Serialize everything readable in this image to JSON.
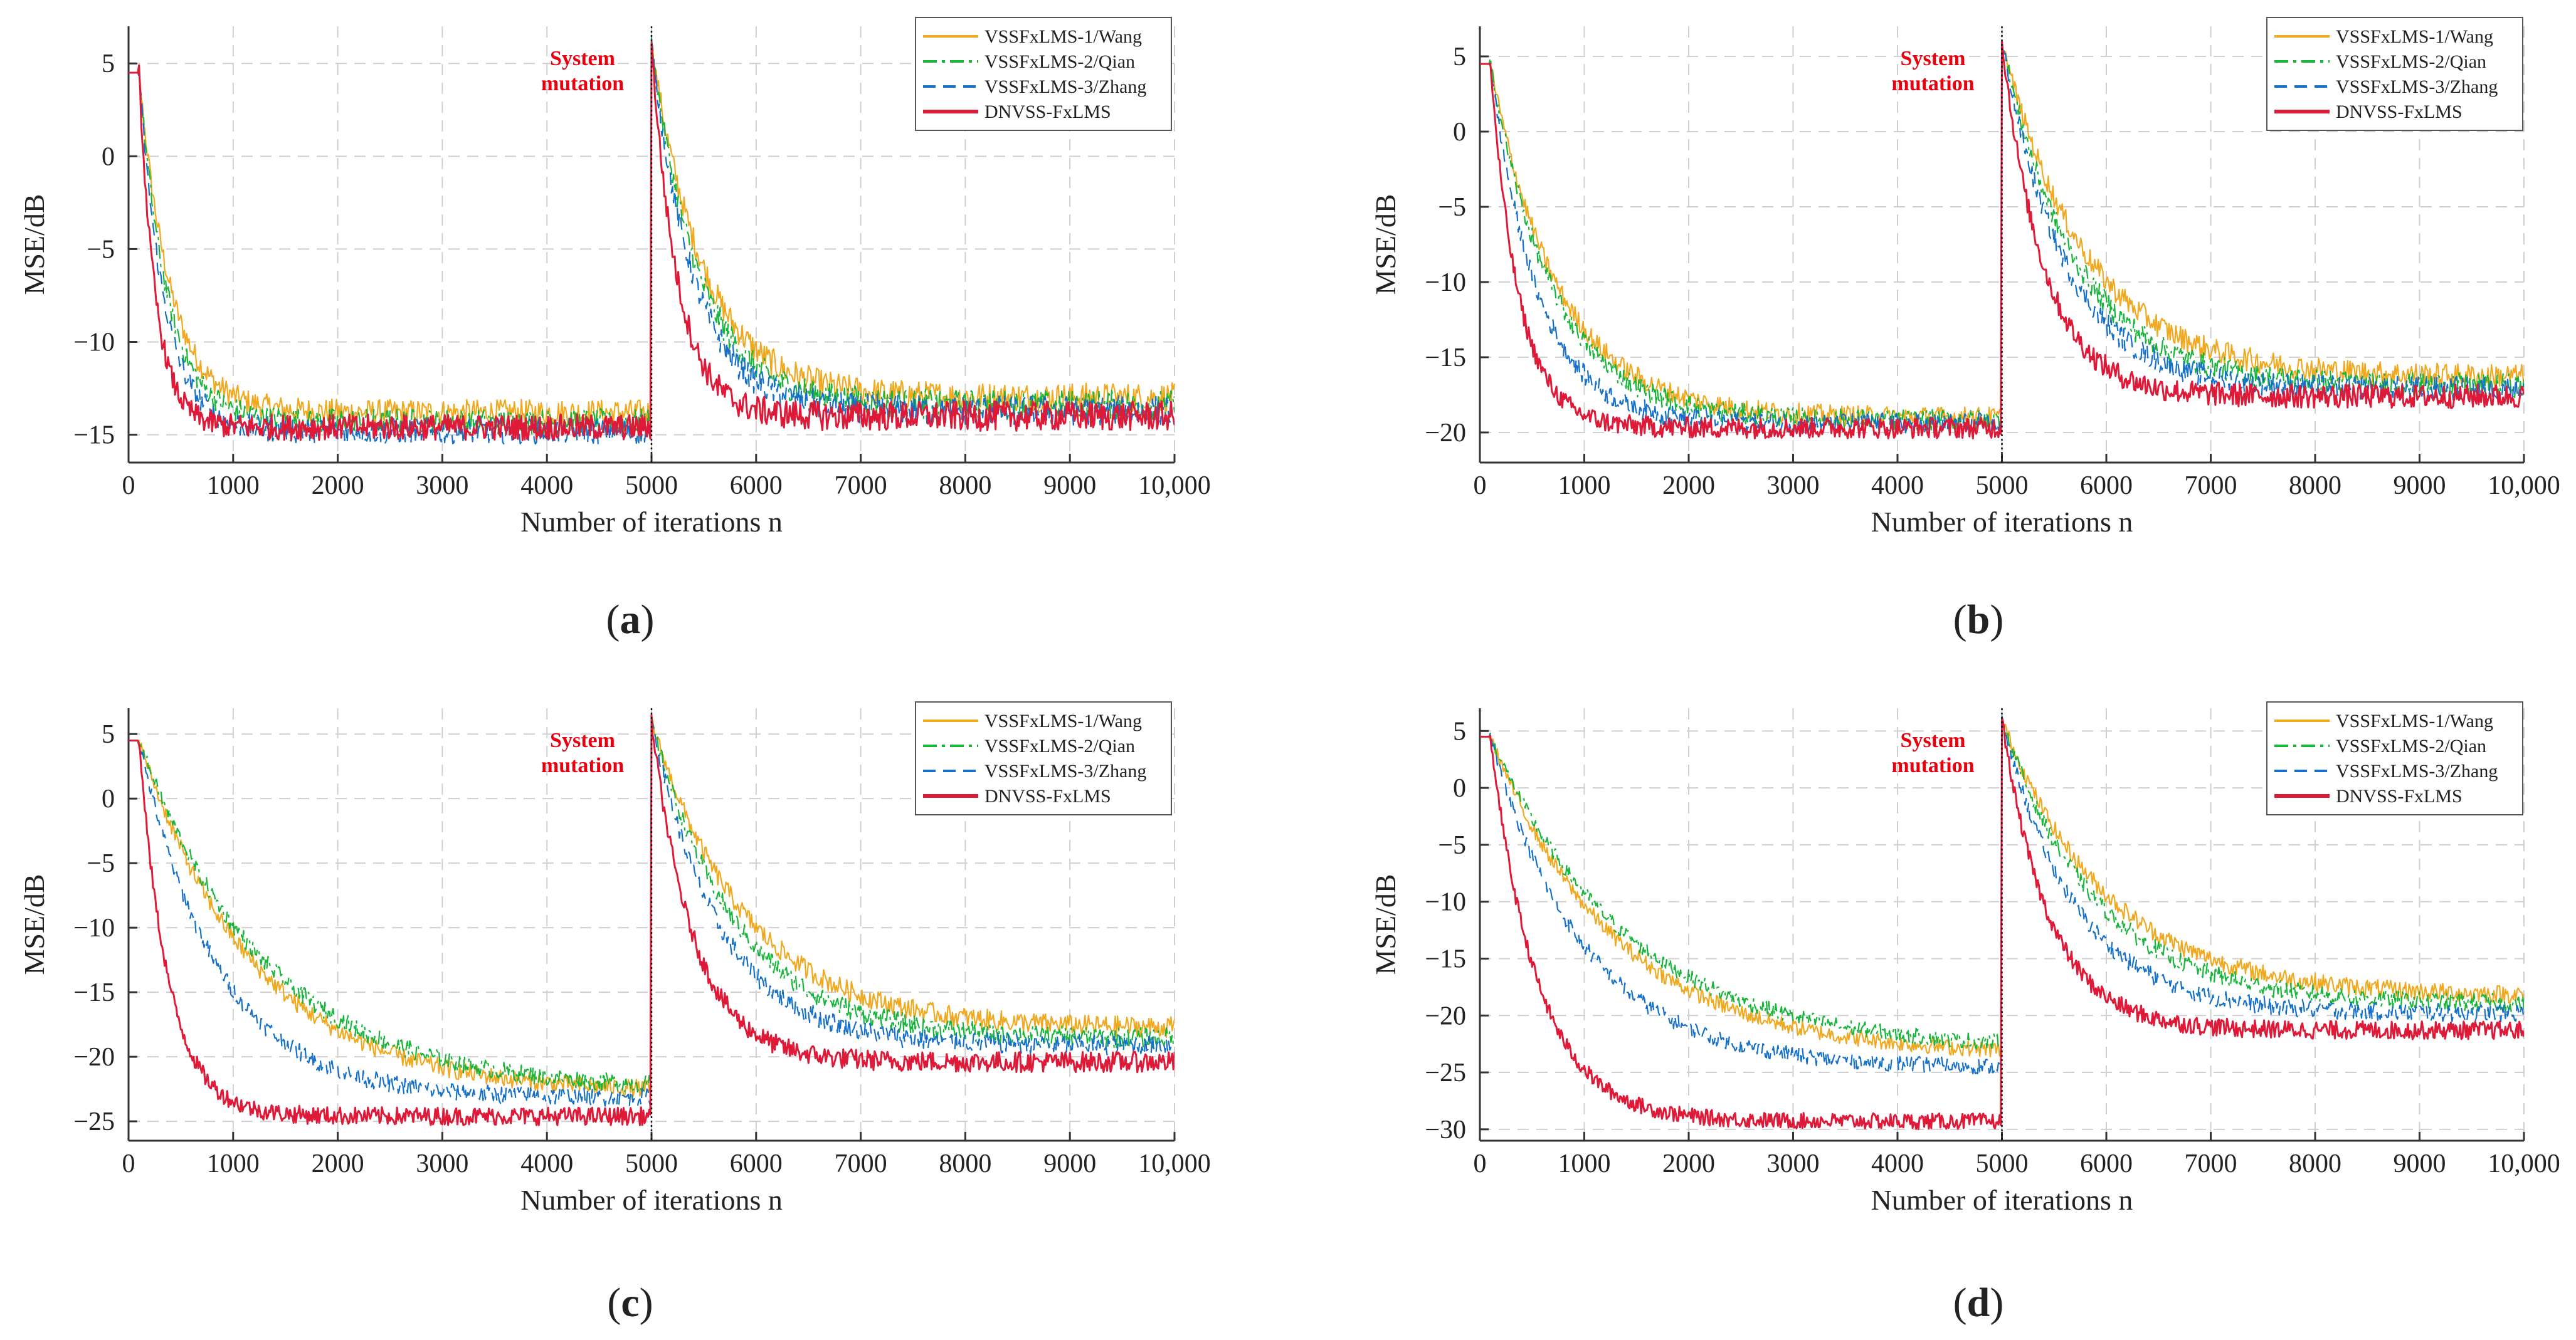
{
  "colors": {
    "series1": "#f0a81e",
    "series2": "#18b53b",
    "series3": "#1470c8",
    "series4": "#de1a38",
    "grid": "#cfcfcf",
    "axis": "#333333",
    "annotation": "#e8000f"
  },
  "chart_data": [
    {
      "type": "line",
      "panel_label": "(a)",
      "panel_letter": "a",
      "xlabel": "Number of iterations n",
      "ylabel": "MSE/dB",
      "xlim": [
        0,
        10000
      ],
      "ylim": [
        -16.5,
        7
      ],
      "x_ticks": [
        0,
        1000,
        2000,
        3000,
        4000,
        5000,
        6000,
        7000,
        8000,
        9000,
        10000
      ],
      "x_tick_labels": [
        "0",
        "1000",
        "2000",
        "3000",
        "4000",
        "5000",
        "6000",
        "7000",
        "8000",
        "9000",
        "10,000"
      ],
      "y_ticks": [
        5,
        0,
        -5,
        -10,
        -15
      ],
      "y_tick_labels": [
        "5",
        "0",
        "−5",
        "−10",
        "−15"
      ],
      "grid": true,
      "legend_position": "top-right",
      "annotation": [
        "System",
        "mutation"
      ],
      "series": [
        {
          "name": "VSSFxLMS-1/Wang",
          "start": 4.5,
          "steady1": -13.8,
          "tau1": 300,
          "peak2": 6,
          "steady2": -13.0,
          "tau2": 500
        },
        {
          "name": "VSSFxLMS-2/Qian",
          "start": 4.5,
          "steady1": -14.3,
          "tau1": 270,
          "peak2": 6,
          "steady2": -13.4,
          "tau2": 450
        },
        {
          "name": "VSSFxLMS-3/Zhang",
          "start": 4.5,
          "steady1": -14.8,
          "tau1": 240,
          "peak2": 6,
          "steady2": -13.7,
          "tau2": 400
        },
        {
          "name": "DNVSS-FxLMS",
          "start": 4.5,
          "steady1": -14.6,
          "tau1": 160,
          "peak2": 6,
          "steady2": -14.0,
          "tau2": 250
        }
      ]
    },
    {
      "type": "line",
      "panel_label": "(b)",
      "panel_letter": "b",
      "xlabel": "Number of iterations n",
      "ylabel": "MSE/dB",
      "xlim": [
        0,
        10000
      ],
      "ylim": [
        -22,
        7
      ],
      "x_ticks": [
        0,
        1000,
        2000,
        3000,
        4000,
        5000,
        6000,
        7000,
        8000,
        9000,
        10000
      ],
      "x_tick_labels": [
        "0",
        "1000",
        "2000",
        "3000",
        "4000",
        "5000",
        "6000",
        "7000",
        "8000",
        "9000",
        "10,000"
      ],
      "y_ticks": [
        5,
        0,
        -5,
        -10,
        -15,
        -20
      ],
      "y_tick_labels": [
        "5",
        "0",
        "−5",
        "−10",
        "−15",
        "−20"
      ],
      "grid": true,
      "legend_position": "top-right",
      "annotation": [
        "System",
        "mutation"
      ],
      "series": [
        {
          "name": "VSSFxLMS-1/Wang",
          "start": 4.5,
          "steady1": -19.0,
          "tau1": 650,
          "peak2": 6,
          "steady2": -16.3,
          "tau2": 800
        },
        {
          "name": "VSSFxLMS-2/Qian",
          "start": 4.5,
          "steady1": -19.2,
          "tau1": 600,
          "peak2": 6,
          "steady2": -16.9,
          "tau2": 700
        },
        {
          "name": "VSSFxLMS-3/Zhang",
          "start": 4.5,
          "steady1": -19.4,
          "tau1": 450,
          "peak2": 6,
          "steady2": -17.1,
          "tau2": 600
        },
        {
          "name": "DNVSS-FxLMS",
          "start": 4.5,
          "steady1": -19.7,
          "tau1": 270,
          "peak2": 6,
          "steady2": -17.6,
          "tau2": 400
        }
      ]
    },
    {
      "type": "line",
      "panel_label": "(c)",
      "panel_letter": "c",
      "xlabel": "Number of iterations n",
      "ylabel": "MSE/dB",
      "xlim": [
        0,
        10000
      ],
      "ylim": [
        -26.5,
        7
      ],
      "x_ticks": [
        0,
        1000,
        2000,
        3000,
        4000,
        5000,
        6000,
        7000,
        8000,
        9000,
        10000
      ],
      "x_tick_labels": [
        "0",
        "1000",
        "2000",
        "3000",
        "4000",
        "5000",
        "6000",
        "7000",
        "8000",
        "9000",
        "10,000"
      ],
      "y_ticks": [
        5,
        0,
        -5,
        -10,
        -15,
        -20,
        -25
      ],
      "y_tick_labels": [
        "5",
        "0",
        "−5",
        "−10",
        "−15",
        "−20",
        "−25"
      ],
      "grid": true,
      "legend_position": "top-right",
      "annotation": [
        "System",
        "mutation"
      ],
      "series": [
        {
          "name": "VSSFxLMS-1/Wang",
          "start": 4.5,
          "steady1": -22.8,
          "tau1": 1100,
          "peak2": 6,
          "steady2": -17.8,
          "tau2": 900
        },
        {
          "name": "VSSFxLMS-2/Qian",
          "start": 4.5,
          "steady1": -22.6,
          "tau1": 1200,
          "peak2": 6,
          "steady2": -18.6,
          "tau2": 800
        },
        {
          "name": "VSSFxLMS-3/Zhang",
          "start": 4.5,
          "steady1": -23.2,
          "tau1": 750,
          "peak2": 6,
          "steady2": -19.1,
          "tau2": 650
        },
        {
          "name": "DNVSS-FxLMS",
          "start": 4.5,
          "steady1": -24.6,
          "tau1": 280,
          "peak2": 6,
          "steady2": -20.4,
          "tau2": 400
        }
      ]
    },
    {
      "type": "line",
      "panel_label": "(d)",
      "panel_letter": "d",
      "xlabel": "Number of iterations n",
      "ylabel": "MSE/dB",
      "xlim": [
        0,
        10000
      ],
      "ylim": [
        -31,
        7
      ],
      "x_ticks": [
        0,
        1000,
        2000,
        3000,
        4000,
        5000,
        6000,
        7000,
        8000,
        9000,
        10000
      ],
      "x_tick_labels": [
        "0",
        "1000",
        "2000",
        "3000",
        "4000",
        "5000",
        "6000",
        "7000",
        "8000",
        "9000",
        "10,000"
      ],
      "y_ticks": [
        5,
        0,
        -5,
        -10,
        -15,
        -20,
        -25,
        -30
      ],
      "y_tick_labels": [
        "5",
        "0",
        "−5",
        "−10",
        "−15",
        "−20",
        "−25",
        "−30"
      ],
      "grid": true,
      "legend_position": "top-right",
      "annotation": [
        "System",
        "mutation"
      ],
      "series": [
        {
          "name": "VSSFxLMS-1/Wang",
          "start": 4.5,
          "steady1": -23.5,
          "tau1": 1200,
          "peak2": 6,
          "steady2": -18.3,
          "tau2": 1000
        },
        {
          "name": "VSSFxLMS-2/Qian",
          "start": 4.5,
          "steady1": -23.0,
          "tau1": 1300,
          "peak2": 6,
          "steady2": -19.0,
          "tau2": 900
        },
        {
          "name": "VSSFxLMS-3/Zhang",
          "start": 4.5,
          "steady1": -24.6,
          "tau1": 900,
          "peak2": 6,
          "steady2": -19.8,
          "tau2": 700
        },
        {
          "name": "DNVSS-FxLMS",
          "start": 4.5,
          "steady1": -29.3,
          "tau1": 450,
          "peak2": 6,
          "steady2": -21.3,
          "tau2": 450
        }
      ]
    }
  ]
}
